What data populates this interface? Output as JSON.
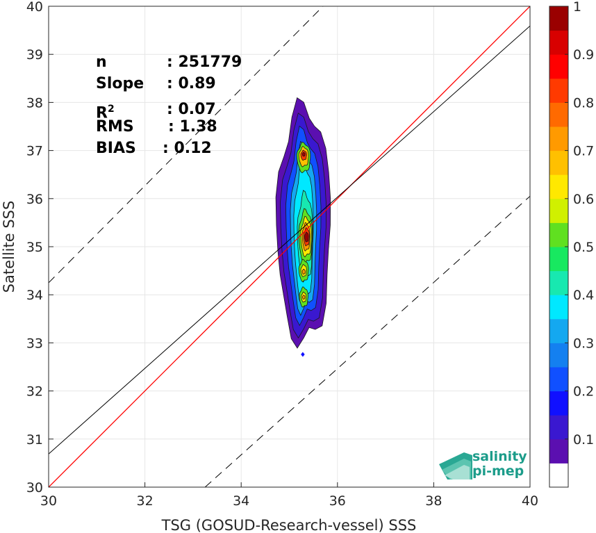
{
  "chart_data": {
    "type": "contour",
    "xlabel": "TSG (GOSUD-Research-vessel) SSS",
    "ylabel": "Satellite SSS",
    "xlim": [
      30,
      40
    ],
    "ylim": [
      30,
      40
    ],
    "x_ticks": [
      "30",
      "32",
      "34",
      "36",
      "38",
      "40"
    ],
    "y_ticks": [
      "30",
      "31",
      "32",
      "33",
      "34",
      "35",
      "36",
      "37",
      "38",
      "39",
      "40"
    ],
    "grid": true,
    "colorbar": {
      "min": 0,
      "max": 1,
      "ticks": [
        "0.1",
        "0.2",
        "0.3",
        "0.4",
        "0.5",
        "0.6",
        "0.7",
        "0.8",
        "0.9",
        "1"
      ],
      "levels": [
        "#ffffff",
        "#5b0fb0",
        "#3a18d0",
        "#1010ff",
        "#1050ff",
        "#1480f0",
        "#14a8f0",
        "#00e8ff",
        "#18e8b0",
        "#18e860",
        "#60e020",
        "#d0f000",
        "#ffe800",
        "#ffc000",
        "#ff9a00",
        "#ff6a00",
        "#ff3a00",
        "#ff0000",
        "#d80000",
        "#9a0000"
      ]
    },
    "lines": [
      {
        "kind": "one_to_one",
        "color": "#ff0000",
        "x": [
          30,
          40
        ],
        "y": [
          30,
          40
        ]
      },
      {
        "kind": "regression",
        "color": "#000000",
        "x": [
          30,
          40
        ],
        "y": [
          30.69,
          39.59
        ]
      },
      {
        "kind": "upper_bound",
        "color": "#000000",
        "dash": true,
        "x": [
          30,
          35.7
        ],
        "y": [
          34.25,
          40
        ]
      },
      {
        "kind": "lower_bound",
        "color": "#000000",
        "dash": true,
        "x": [
          33.25,
          40
        ],
        "y": [
          30,
          36.05
        ]
      }
    ],
    "density_peaks": [
      {
        "x": 35.35,
        "y": 35.2,
        "value": 1.0
      },
      {
        "x": 35.3,
        "y": 36.9,
        "value": 0.95
      },
      {
        "x": 35.3,
        "y": 34.5,
        "value": 0.65
      },
      {
        "x": 35.3,
        "y": 33.95,
        "value": 0.65
      }
    ],
    "outlier_point": {
      "x": 35.28,
      "y": 32.76
    }
  },
  "stats": {
    "n_label": "n",
    "n_value": ": 251779",
    "slope_label": "Slope",
    "slope_value": ": 0.89",
    "r2_label": "R",
    "r2_sup": "2",
    "r2_value": ": 0.07",
    "rms_label": "RMS",
    "rms_value": ": 1.38",
    "bias_label": "BIAS",
    "bias_value": ": 0.12"
  },
  "logo": {
    "line1": "salinity",
    "line2": "pi-mep"
  }
}
